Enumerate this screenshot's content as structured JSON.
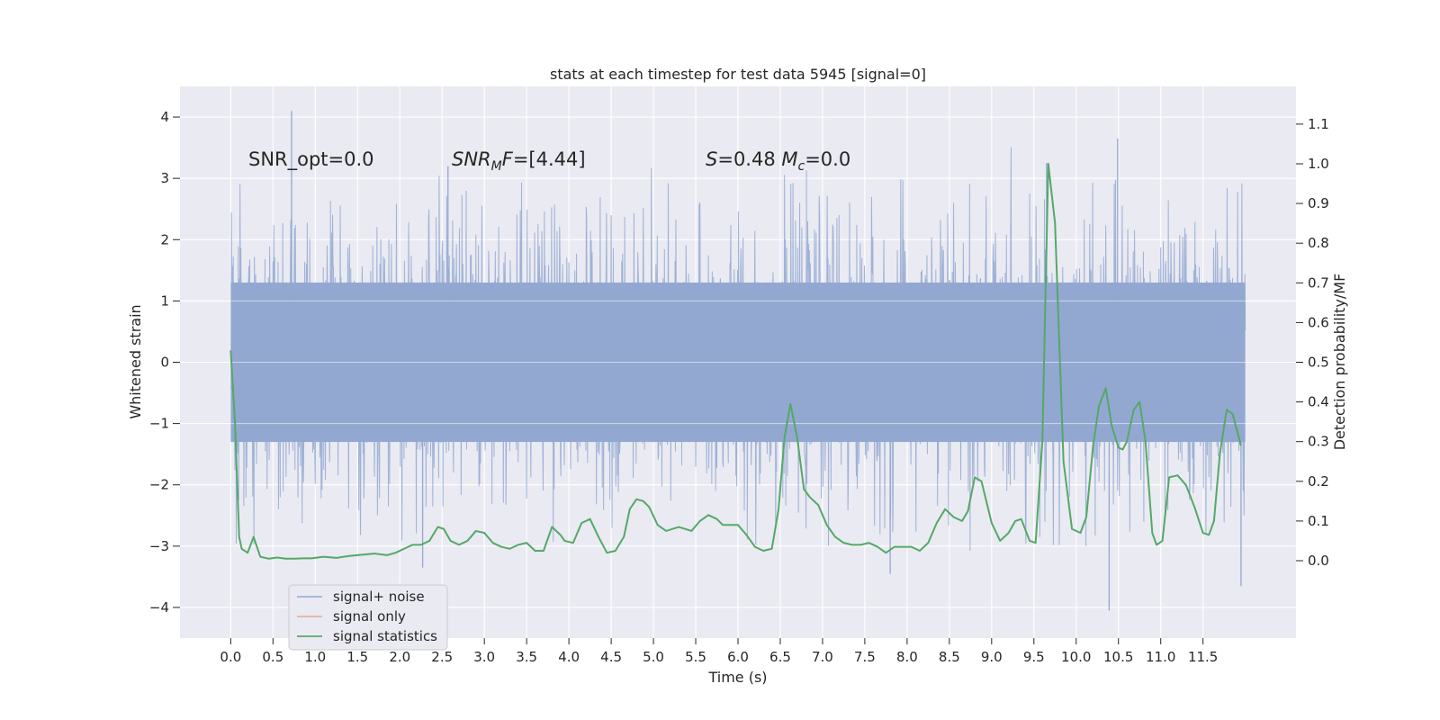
{
  "chart_data": {
    "type": "line",
    "title": "stats at each timestep for test data 5945 [signal=0]",
    "xlabel": "Time (s)",
    "ylabel_left": "Whitened strain",
    "ylabel_right": "Detection probability/MF",
    "xlim": [
      -0.6,
      12.6
    ],
    "ylim_left": [
      -4.5,
      4.5
    ],
    "ylim_right": [
      -0.195,
      1.195
    ],
    "x_ticks": [
      0.0,
      0.5,
      1.0,
      1.5,
      2.0,
      2.5,
      3.0,
      3.5,
      4.0,
      4.5,
      5.0,
      5.5,
      6.0,
      6.5,
      7.0,
      7.5,
      8.0,
      8.5,
      9.0,
      9.5,
      10.0,
      10.5,
      11.0,
      11.5
    ],
    "x_tick_labels": [
      "0.0",
      "0.5",
      "1.0",
      "1.5",
      "2.0",
      "2.5",
      "3.0",
      "3.5",
      "4.0",
      "4.5",
      "5.0",
      "5.5",
      "6.0",
      "6.5",
      "7.0",
      "7.5",
      "8.0",
      "8.5",
      "9.0",
      "9.5",
      "10.0",
      "10.5",
      "11.0",
      "11.5"
    ],
    "y_left_ticks": [
      4,
      3,
      2,
      1,
      0,
      -1,
      -2,
      -3,
      -4
    ],
    "y_left_tick_labels": [
      "4",
      "3",
      "2",
      "1",
      "0",
      "−1",
      "−2",
      "−3",
      "−4"
    ],
    "y_right_ticks": [
      1.1,
      1.0,
      0.9,
      0.8,
      0.7,
      0.6,
      0.5,
      0.4,
      0.3,
      0.2,
      0.1,
      0.0
    ],
    "y_right_tick_labels": [
      "1.1",
      "1.0",
      "0.9",
      "0.8",
      "0.7",
      "0.6",
      "0.5",
      "0.4",
      "0.3",
      "0.2",
      "0.1",
      "0.0"
    ],
    "grid": true,
    "legend_position": "lower-left",
    "annotations": [
      {
        "id": "snr-opt",
        "text": "SNR_opt=0.0"
      },
      {
        "id": "snr-mf",
        "text": "SNR_MF=[4.44]"
      },
      {
        "id": "s-mc",
        "text": "S=0.48   M_c=0.0"
      }
    ],
    "series": [
      {
        "name": "signal+ noise",
        "axis": "left",
        "color": "#92a8d1",
        "kind": "noise",
        "x_range": [
          0.0,
          12.0
        ],
        "core_band": [
          -1.3,
          1.3
        ],
        "typical_envelope": [
          -2.0,
          2.0
        ],
        "notable_extremes": [
          {
            "x": 0.72,
            "y": 4.1
          },
          {
            "x": 10.49,
            "y": 3.65
          },
          {
            "x": 10.39,
            "y": -4.05
          },
          {
            "x": 11.95,
            "y": -3.65
          },
          {
            "x": 2.57,
            "y": 3.2
          },
          {
            "x": 2.27,
            "y": -3.35
          },
          {
            "x": 7.8,
            "y": -3.45
          },
          {
            "x": 9.65,
            "y": 3.25
          }
        ]
      },
      {
        "name": "signal only",
        "axis": "left",
        "color": "#e8a98a",
        "x": [],
        "y": []
      },
      {
        "name": "signal statistics",
        "axis": "right",
        "color": "#55a868",
        "x": [
          0.0,
          0.05,
          0.1,
          0.13,
          0.2,
          0.27,
          0.35,
          0.45,
          0.55,
          0.65,
          0.75,
          0.85,
          0.95,
          1.1,
          1.25,
          1.4,
          1.55,
          1.7,
          1.85,
          1.95,
          2.05,
          2.15,
          2.25,
          2.35,
          2.45,
          2.52,
          2.6,
          2.7,
          2.8,
          2.9,
          3.0,
          3.1,
          3.2,
          3.3,
          3.4,
          3.5,
          3.6,
          3.7,
          3.8,
          3.9,
          3.95,
          4.05,
          4.15,
          4.25,
          4.35,
          4.45,
          4.55,
          4.65,
          4.72,
          4.8,
          4.88,
          4.95,
          5.05,
          5.15,
          5.3,
          5.45,
          5.55,
          5.65,
          5.75,
          5.82,
          5.9,
          6.0,
          6.1,
          6.2,
          6.3,
          6.4,
          6.48,
          6.55,
          6.62,
          6.7,
          6.78,
          6.85,
          6.95,
          7.05,
          7.15,
          7.25,
          7.35,
          7.45,
          7.55,
          7.65,
          7.75,
          7.85,
          7.95,
          8.05,
          8.15,
          8.25,
          8.35,
          8.45,
          8.55,
          8.65,
          8.72,
          8.8,
          8.88,
          9.0,
          9.1,
          9.2,
          9.28,
          9.35,
          9.45,
          9.52,
          9.6,
          9.67,
          9.75,
          9.85,
          9.95,
          10.05,
          10.12,
          10.2,
          10.27,
          10.35,
          10.42,
          10.5,
          10.55,
          10.6,
          10.68,
          10.75,
          10.82,
          10.9,
          10.95,
          11.02,
          11.1,
          11.2,
          11.3,
          11.4,
          11.5,
          11.57,
          11.63,
          11.7,
          11.78,
          11.85,
          11.95
        ],
        "y": [
          0.53,
          0.35,
          0.06,
          0.03,
          0.02,
          0.06,
          0.01,
          0.005,
          0.008,
          0.005,
          0.005,
          0.006,
          0.006,
          0.01,
          0.007,
          0.012,
          0.015,
          0.018,
          0.014,
          0.02,
          0.03,
          0.04,
          0.04,
          0.05,
          0.085,
          0.08,
          0.05,
          0.04,
          0.05,
          0.075,
          0.07,
          0.045,
          0.035,
          0.03,
          0.04,
          0.045,
          0.025,
          0.025,
          0.085,
          0.065,
          0.05,
          0.045,
          0.095,
          0.105,
          0.06,
          0.02,
          0.025,
          0.06,
          0.13,
          0.155,
          0.15,
          0.135,
          0.09,
          0.075,
          0.085,
          0.075,
          0.1,
          0.115,
          0.105,
          0.09,
          0.09,
          0.09,
          0.065,
          0.035,
          0.025,
          0.03,
          0.13,
          0.31,
          0.395,
          0.31,
          0.18,
          0.16,
          0.14,
          0.09,
          0.06,
          0.045,
          0.04,
          0.04,
          0.045,
          0.035,
          0.02,
          0.035,
          0.035,
          0.035,
          0.025,
          0.045,
          0.095,
          0.13,
          0.11,
          0.1,
          0.125,
          0.21,
          0.2,
          0.095,
          0.05,
          0.07,
          0.1,
          0.105,
          0.05,
          0.045,
          0.3,
          1.0,
          0.85,
          0.25,
          0.08,
          0.07,
          0.11,
          0.29,
          0.39,
          0.435,
          0.34,
          0.285,
          0.28,
          0.3,
          0.38,
          0.4,
          0.3,
          0.07,
          0.04,
          0.05,
          0.21,
          0.215,
          0.19,
          0.135,
          0.07,
          0.065,
          0.1,
          0.27,
          0.38,
          0.37,
          0.29
        ]
      }
    ]
  }
}
